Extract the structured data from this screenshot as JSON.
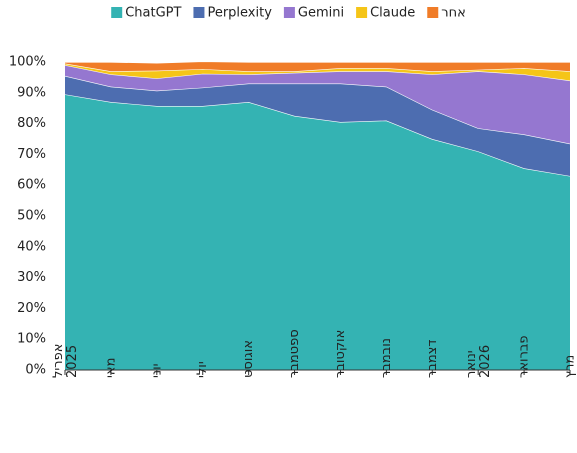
{
  "chart_data": {
    "type": "stacked_area_100",
    "categories": [
      "אפריל 2025",
      "מאי",
      "יוני",
      "יולי",
      "אוגוסט",
      "ספטמבר",
      "אוקטובר",
      "נובמבר",
      "דצמבר",
      "ינואר 2026",
      "פברואר",
      "מרץ"
    ],
    "series": [
      {
        "name": "ChatGPT",
        "color": "#34b3b3",
        "values": [
          89.5,
          87,
          85.7,
          85.7,
          87,
          82.5,
          80.5,
          81,
          75,
          71,
          65.5,
          63
        ]
      },
      {
        "name": "Perplexity",
        "color": "#4d6db0",
        "values": [
          6,
          5,
          5,
          6,
          6,
          10.5,
          12.5,
          11,
          9.5,
          7.5,
          11,
          10.5
        ]
      },
      {
        "name": "Gemini",
        "color": "#9577d0",
        "values": [
          3.5,
          4,
          4,
          4.5,
          3,
          3.5,
          4,
          5,
          11.5,
          18.5,
          19.5,
          20.5
        ]
      },
      {
        "name": "Claude",
        "color": "#f5c518",
        "values": [
          0.5,
          1,
          2.5,
          1.5,
          1,
          0.5,
          1,
          1,
          1,
          0.5,
          2,
          3
        ]
      },
      {
        "name": "אחר",
        "color": "#f07c28",
        "values": [
          0.5,
          3,
          2.5,
          2.5,
          3,
          3,
          2,
          2,
          3,
          2.5,
          2,
          3
        ]
      }
    ],
    "ylim": [
      0,
      100
    ],
    "yticks": [
      {
        "value": 0,
        "label": "0%"
      },
      {
        "value": 10,
        "label": "10%"
      },
      {
        "value": 20,
        "label": "20%"
      },
      {
        "value": 30,
        "label": "30%"
      },
      {
        "value": 40,
        "label": "40%"
      },
      {
        "value": 50,
        "label": "50%"
      },
      {
        "value": 60,
        "label": "60%"
      },
      {
        "value": 70,
        "label": "70%"
      },
      {
        "value": 80,
        "label": "80%"
      },
      {
        "value": 90,
        "label": "90%"
      },
      {
        "value": 100,
        "label": "100%"
      }
    ],
    "legend": "top"
  }
}
